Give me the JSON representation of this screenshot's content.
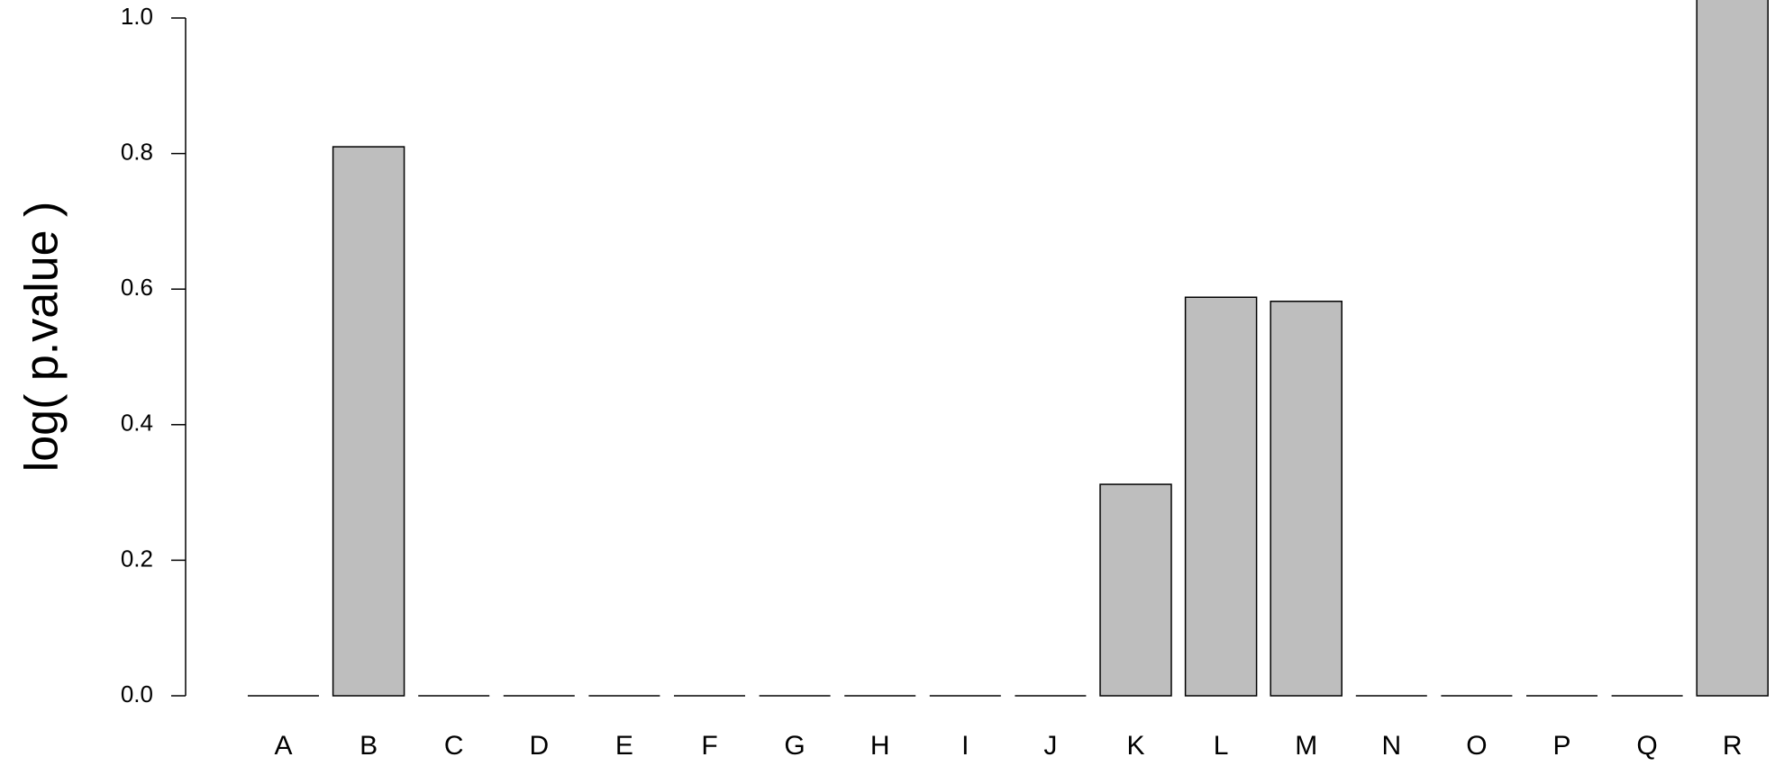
{
  "chart_data": {
    "type": "bar",
    "title": "",
    "xlabel": "",
    "ylabel": "log( p.value )",
    "categories": [
      "A",
      "B",
      "C",
      "D",
      "E",
      "F",
      "G",
      "H",
      "I",
      "J",
      "K",
      "L",
      "M",
      "N",
      "O",
      "P",
      "Q",
      "R"
    ],
    "values": [
      0,
      0.81,
      0,
      0,
      0,
      0,
      0,
      0,
      0,
      0,
      0.312,
      0.588,
      0.582,
      0,
      0,
      0,
      0,
      1.03
    ],
    "ylim": [
      0,
      1.0
    ],
    "yticks": [
      "0.0",
      "0.2",
      "0.4",
      "0.6",
      "0.8",
      "1.0"
    ],
    "bar_fill": "#bebebe",
    "bar_stroke": "#000000",
    "grid": false,
    "legend": "none"
  }
}
